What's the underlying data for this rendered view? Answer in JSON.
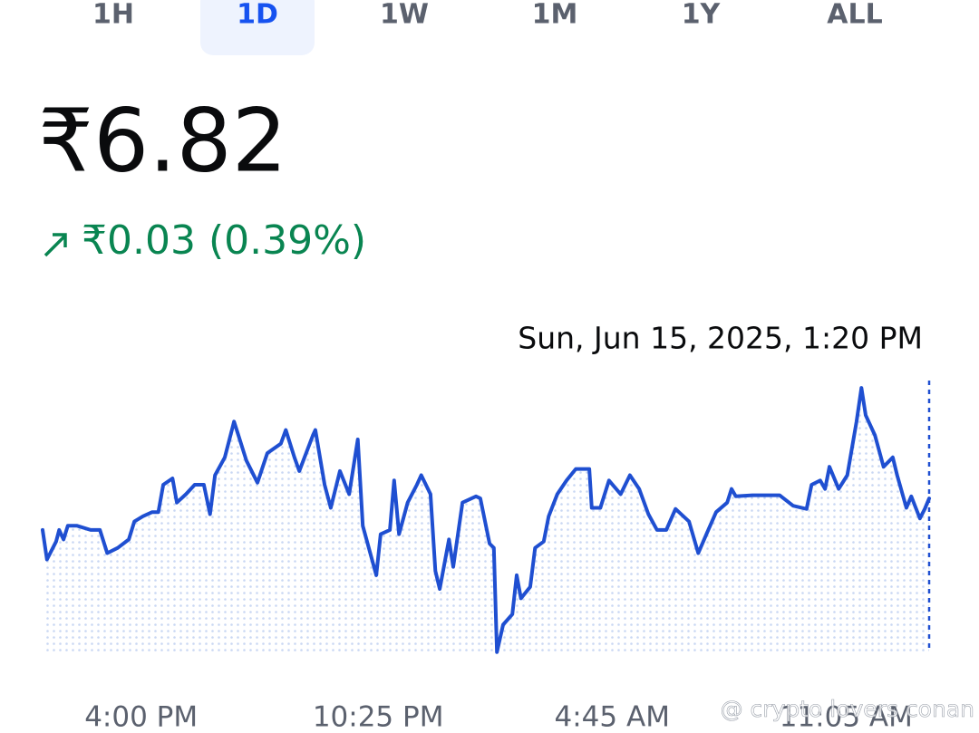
{
  "tabs": [
    "1H",
    "1D",
    "1W",
    "1M",
    "1Y",
    "ALL"
  ],
  "selected_tab": "1D",
  "price": "₹6.82",
  "change": "₹0.03 (0.39%)",
  "watermark": "@ crypto lovers conan",
  "chart_data": {
    "type": "line",
    "hover_label": "Sun, Jun 15, 2025, 1:20 PM",
    "color": "#1f4fd1",
    "x": [
      0,
      7,
      22,
      27,
      34,
      41,
      56,
      78,
      93,
      105,
      122,
      140,
      149,
      163,
      178,
      188,
      196,
      211,
      218,
      233,
      247,
      262,
      272,
      280,
      296,
      311,
      318,
      331,
      349,
      365,
      387,
      395,
      409,
      417,
      439,
      443,
      458,
      468,
      483,
      498,
      512,
      520,
      542,
      549,
      564,
      571,
      579,
      593,
      608,
      615,
      630,
      638,
      645,
      660,
      667,
      682,
      704,
      711,
      726,
      733,
      738,
      748,
      763,
      770,
      777,
      792,
      800,
      814,
      822,
      836,
      851,
      866,
      888,
      892,
      906,
      920,
      939,
      954,
      969,
      984,
      998,
      1013,
      1028,
      1050,
      1065,
      1079,
      1094,
      1112,
      1119,
      1126,
      1153,
      1197,
      1219,
      1241,
      1249,
      1263,
      1271,
      1278,
      1293,
      1307,
      1322,
      1330,
      1337,
      1352,
      1366,
      1381,
      1388,
      1403,
      1411,
      1425,
      1433,
      1440
    ],
    "values": [
      6.79,
      6.762,
      6.779,
      6.79,
      6.781,
      6.794,
      6.794,
      6.79,
      6.79,
      6.768,
      6.773,
      6.781,
      6.798,
      6.803,
      6.807,
      6.807,
      6.833,
      6.839,
      6.816,
      6.824,
      6.833,
      6.833,
      6.805,
      6.842,
      6.859,
      6.893,
      6.88,
      6.856,
      6.835,
      6.863,
      6.872,
      6.885,
      6.859,
      6.846,
      6.88,
      6.885,
      6.833,
      6.811,
      6.846,
      6.824,
      6.876,
      6.794,
      6.747,
      6.786,
      6.79,
      6.837,
      6.786,
      6.816,
      6.833,
      6.842,
      6.824,
      6.751,
      6.734,
      6.781,
      6.755,
      6.816,
      6.822,
      6.82,
      6.777,
      6.773,
      6.674,
      6.7,
      6.71,
      6.747,
      6.725,
      6.736,
      6.773,
      6.779,
      6.803,
      6.824,
      6.837,
      6.848,
      6.848,
      6.811,
      6.811,
      6.837,
      6.824,
      6.842,
      6.829,
      6.805,
      6.79,
      6.79,
      6.81,
      6.798,
      6.768,
      6.787,
      6.807,
      6.816,
      6.829,
      6.822,
      6.823,
      6.823,
      6.813,
      6.81,
      6.833,
      6.837,
      6.829,
      6.85,
      6.829,
      6.842,
      6.893,
      6.925,
      6.899,
      6.88,
      6.85,
      6.859,
      6.842,
      6.811,
      6.822,
      6.801,
      6.81,
      6.82
    ],
    "xlim": [
      0,
      1440
    ],
    "ylim": [
      6.672,
      6.932
    ],
    "xticks": [
      {
        "value": 160,
        "label": "4:00 PM"
      },
      {
        "value": 545,
        "label": "10:25 PM"
      },
      {
        "value": 925,
        "label": "4:45 AM"
      },
      {
        "value": 1305,
        "label": "11:05 AM"
      }
    ]
  }
}
